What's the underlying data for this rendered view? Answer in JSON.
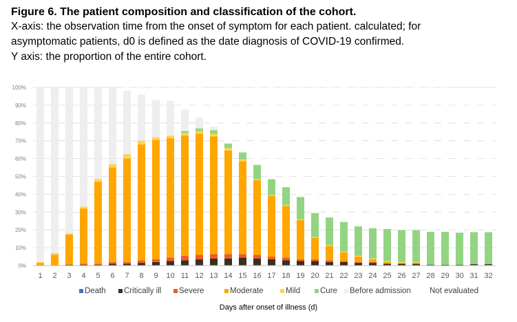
{
  "caption": {
    "title": "Figure 6. The patient composition and classification of the cohort.",
    "line1": "X-axis: the observation time from the onset of symptom for each patient. calculated; for",
    "line2": "asymptomatic patients, d0 is defined as the date diagnosis of COVID-19 confirmed.",
    "line3": "Y axis: the proportion of the entire cohort."
  },
  "chart_data": {
    "type": "bar",
    "stacked": true,
    "xlabel": "Days after onset of illness (d)",
    "ylabel": "",
    "ylim": [
      0,
      100
    ],
    "yticks": [
      "0%",
      "10%",
      "20%",
      "30%",
      "40%",
      "50%",
      "60%",
      "70%",
      "80%",
      "90%",
      "100%"
    ],
    "grid": true,
    "legend_position": "bottom",
    "categories": [
      "1",
      "2",
      "3",
      "4",
      "5",
      "6",
      "7",
      "8",
      "9",
      "10",
      "11",
      "12",
      "13",
      "14",
      "15",
      "16",
      "17",
      "18",
      "19",
      "20",
      "21",
      "22",
      "23",
      "24",
      "25",
      "26",
      "27",
      "28",
      "29",
      "30",
      "31",
      "32"
    ],
    "series": [
      {
        "name": "Death",
        "color": "#4472c4",
        "values": [
          0,
          0,
          0,
          0,
          0,
          0,
          0,
          0,
          0,
          0,
          0,
          0,
          0,
          0,
          0,
          0,
          0,
          0,
          0,
          0,
          0,
          0,
          0,
          0,
          0,
          0,
          0,
          0,
          0,
          0,
          0.3,
          0.3
        ]
      },
      {
        "name": "Critically ill",
        "color": "#3b2e22",
        "values": [
          0,
          0,
          0.5,
          0.5,
          0.5,
          1,
          1,
          1.5,
          2,
          2.5,
          3,
          3.5,
          4,
          4,
          4.5,
          4,
          3.5,
          3,
          2.5,
          2.5,
          2,
          2,
          1.5,
          1.5,
          1,
          1,
          1,
          0.5,
          0.5,
          0.5,
          0.5,
          0.5
        ]
      },
      {
        "name": "Severe",
        "color": "#f25a24",
        "values": [
          0,
          0,
          0,
          0.5,
          0.5,
          1,
          1,
          1.5,
          1.5,
          2,
          2.5,
          2.5,
          2.5,
          2.5,
          2,
          2,
          1.5,
          1.5,
          1,
          1,
          1,
          0.5,
          0.5,
          0.5,
          0,
          0,
          0,
          0,
          0,
          0,
          0,
          0
        ]
      },
      {
        "name": "Moderate",
        "color": "#ffa600",
        "values": [
          1.5,
          6,
          17,
          31,
          46,
          53,
          58,
          65,
          67,
          67,
          67.5,
          68,
          66,
          58,
          52,
          42,
          34,
          29,
          22,
          12,
          8,
          5,
          3,
          1.5,
          1,
          0.5,
          0.5,
          0,
          0,
          0,
          0,
          0
        ]
      },
      {
        "name": "Mild",
        "color": "#ffd34d",
        "values": [
          0.5,
          1,
          0.5,
          1,
          1.5,
          2,
          2.5,
          2,
          1.5,
          1.5,
          1.5,
          1.5,
          1.5,
          1.5,
          1,
          0.5,
          0.5,
          0.5,
          0.5,
          0.5,
          0.5,
          0.5,
          0.5,
          0.5,
          0.5,
          0.5,
          0.5,
          0,
          0,
          0,
          0,
          0
        ]
      },
      {
        "name": "Cure",
        "color": "#93d482",
        "values": [
          0,
          0,
          0,
          0,
          0,
          0,
          0,
          0,
          0,
          0,
          1,
          1.5,
          2,
          2.5,
          4,
          8,
          9,
          10,
          12.5,
          13.5,
          15.5,
          16.5,
          16.5,
          17,
          18,
          18,
          18,
          18.5,
          18.5,
          18,
          18,
          18
        ]
      },
      {
        "name": "Before admission",
        "color": "#eeeeee",
        "values": [
          98,
          93,
          82,
          67,
          51.5,
          43,
          35.5,
          26,
          21,
          19.5,
          12,
          6,
          2,
          0,
          0,
          0,
          0,
          0,
          0,
          0,
          0,
          0,
          0,
          0,
          0,
          0,
          0,
          0,
          0,
          0,
          0,
          0
        ]
      },
      {
        "name": "Not evaluated",
        "color": "#ffffff",
        "values": [
          0,
          0,
          0,
          0,
          0,
          0,
          2,
          4,
          7,
          7.5,
          12.5,
          17,
          21.5,
          31.5,
          36.5,
          43.5,
          51.5,
          56,
          61.5,
          70.5,
          73,
          75.5,
          78,
          79,
          79.5,
          80,
          80,
          81,
          81,
          81,
          81,
          81
        ]
      }
    ]
  }
}
